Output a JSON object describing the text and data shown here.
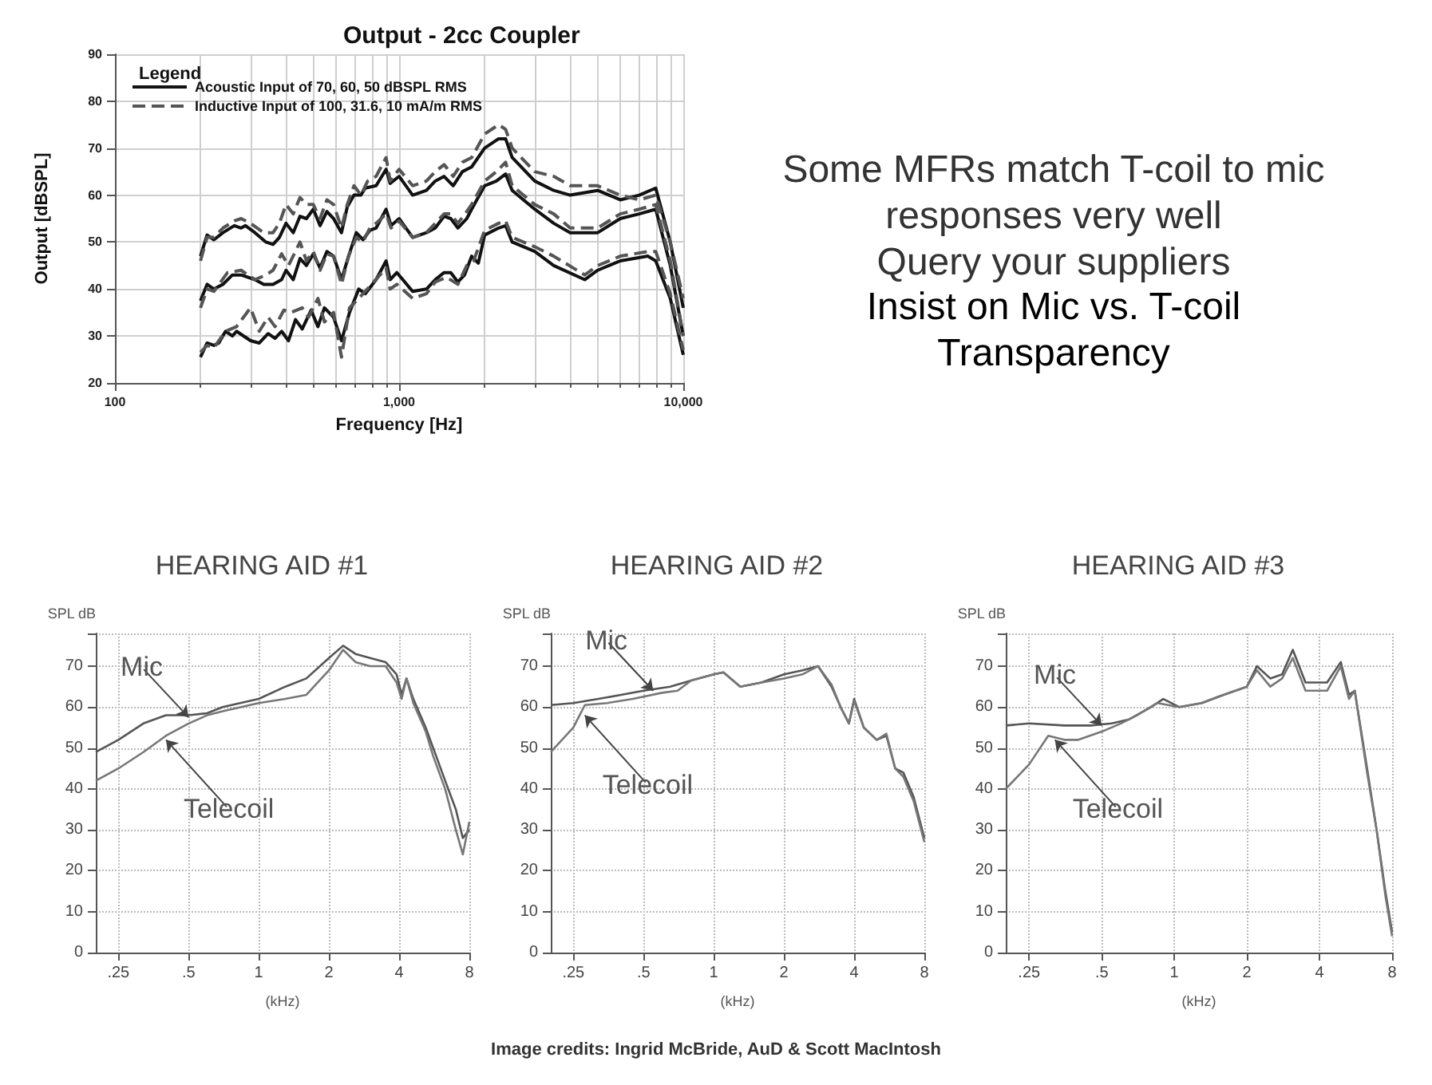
{
  "chart_data": [
    {
      "type": "line",
      "title": "Output - 2cc Coupler",
      "legend_title": "Legend",
      "xlabel": "Frequency [Hz]",
      "ylabel": "Output [dBSPL]",
      "log": "x",
      "xlim": [
        100,
        10000
      ],
      "xticks": [
        100,
        {
          "value": 1000,
          "label": "1,000"
        },
        {
          "value": 10000,
          "label": "10,000"
        }
      ],
      "ylim": [
        20,
        90
      ],
      "yticks": [
        20,
        30,
        40,
        50,
        60,
        70,
        80,
        90
      ],
      "grid": true,
      "legend": "top left",
      "marker": "none",
      "series": [
        {
          "name": "Acoustic Input of 70, 60, 50 dBSPL RMS",
          "color": "#111111",
          "line_style": "solid",
          "x": [
            200,
            211,
            223,
            240,
            263,
            278,
            288,
            311,
            340,
            360,
            379,
            400,
            424,
            448,
            472,
            499,
            527,
            557,
            588,
            627,
            657,
            694,
            734,
            760,
            830,
            900,
            930,
            1000,
            1116,
            1248,
            1340,
            1440,
            1550,
            1670,
            1800,
            2000,
            2240,
            2370,
            2500,
            3000,
            3500,
            4000,
            5000,
            6000,
            7000,
            8000,
            9000,
            10000
          ],
          "values": [
            47,
            51.5,
            50.5,
            52,
            53.5,
            53,
            53.5,
            52,
            50,
            49.5,
            51,
            54,
            52,
            55.5,
            55,
            57,
            53.5,
            56.5,
            55,
            52,
            57.5,
            60,
            60,
            61.5,
            62,
            65.5,
            62.5,
            64,
            60,
            61,
            63,
            64,
            62,
            65,
            66,
            70,
            72,
            72,
            68,
            63,
            61,
            60,
            61,
            59,
            60,
            61.5,
            50,
            36
          ]
        },
        {
          "color": "#111111",
          "line_style": "solid",
          "x": [
            200,
            211,
            223,
            240,
            259,
            278,
            311,
            334,
            360,
            386,
            400,
            424,
            448,
            472,
            499,
            527,
            557,
            588,
            627,
            664,
            707,
            746,
            789,
            830,
            900,
            937,
            1000,
            1116,
            1248,
            1340,
            1440,
            1520,
            1610,
            1730,
            1800,
            2000,
            2200,
            2370,
            2500,
            3000,
            3500,
            4000,
            5000,
            6000,
            7000,
            8000,
            9000,
            10000
          ],
          "values": [
            37.5,
            41,
            40,
            41,
            43,
            43,
            42,
            41,
            41,
            42,
            44,
            42,
            46.5,
            45,
            47.5,
            44.5,
            48,
            47,
            42,
            47,
            52,
            50.5,
            52.5,
            53,
            57,
            53.5,
            55,
            51,
            52,
            53,
            55.5,
            55,
            53,
            55,
            57,
            62,
            63,
            64.5,
            61,
            57,
            54,
            52,
            52,
            55,
            56,
            57,
            45,
            30
          ]
        },
        {
          "color": "#111111",
          "line_style": "solid",
          "x": [
            200,
            211,
            223,
            232,
            245,
            259,
            268,
            300,
            322,
            346,
            366,
            386,
            408,
            432,
            456,
            490,
            518,
            546,
            588,
            627,
            669,
            721,
            760,
            830,
            900,
            930,
            982,
            1116,
            1248,
            1340,
            1440,
            1520,
            1610,
            1700,
            1800,
            1900,
            2000,
            2240,
            2370,
            2500,
            3000,
            3500,
            4500,
            5000,
            6000,
            7500,
            8000,
            9000,
            10000
          ],
          "values": [
            25.5,
            28.5,
            28,
            28.5,
            31,
            30,
            31,
            29,
            28.5,
            30.5,
            29.5,
            31,
            29,
            33.5,
            31.5,
            35.5,
            32,
            36,
            34,
            29,
            35,
            40,
            39,
            42,
            46,
            42,
            43.5,
            39.5,
            40,
            42,
            43.5,
            43.5,
            41.5,
            43,
            47,
            45.5,
            51.5,
            53,
            53.5,
            50,
            48,
            45,
            42,
            44,
            46,
            47,
            46,
            38,
            26
          ]
        },
        {
          "name": "Inductive Input of 100, 31.6, 10 mA/m RMS",
          "color": "#555555",
          "line_style": "dashed",
          "x": [
            200,
            211,
            223,
            240,
            263,
            278,
            300,
            334,
            360,
            379,
            400,
            424,
            448,
            472,
            499,
            527,
            557,
            588,
            627,
            657,
            694,
            734,
            775,
            830,
            900,
            930,
            1000,
            1116,
            1248,
            1340,
            1440,
            1550,
            1670,
            1800,
            2000,
            2240,
            2370,
            2500,
            3000,
            3500,
            4000,
            5000,
            6000,
            7000,
            8000,
            9000,
            10000
          ],
          "values": [
            46,
            51,
            51,
            53,
            54.5,
            55,
            54,
            52,
            52,
            54,
            58,
            56,
            59.5,
            58,
            58,
            55,
            59,
            58,
            53,
            58,
            62,
            60,
            63,
            64,
            68,
            63,
            65.5,
            62,
            63,
            65,
            66.5,
            64,
            67,
            68,
            73,
            75,
            74,
            70,
            65,
            64,
            62,
            62,
            60,
            59,
            60,
            50,
            38
          ]
        },
        {
          "color": "#555555",
          "line_style": "dashed",
          "x": [
            200,
            211,
            223,
            249,
            278,
            311,
            340,
            360,
            386,
            408,
            448,
            472,
            499,
            527,
            557,
            588,
            627,
            664,
            707,
            746,
            789,
            830,
            900,
            937,
            1000,
            1116,
            1248,
            1340,
            1440,
            1520,
            1610,
            1730,
            1800,
            2000,
            2200,
            2370,
            2500,
            3000,
            3500,
            4000,
            5000,
            6000,
            7000,
            8000,
            9000,
            10000
          ],
          "values": [
            36,
            40,
            39.5,
            43.5,
            44,
            42,
            43,
            44,
            47.5,
            45,
            50,
            46,
            48,
            44,
            47.5,
            47,
            41,
            47,
            51,
            50,
            53,
            54,
            56,
            53,
            54.5,
            51,
            52,
            54,
            56,
            56,
            54,
            56.5,
            58,
            63,
            65,
            67,
            62,
            58,
            56,
            53,
            53,
            56,
            57,
            58,
            46,
            30
          ]
        },
        {
          "color": "#555555",
          "line_style": "dashed",
          "x": [
            200,
            211,
            223,
            245,
            268,
            300,
            322,
            346,
            366,
            393,
            416,
            456,
            480,
            518,
            546,
            588,
            627,
            669,
            721,
            800,
            900,
            930,
            982,
            1116,
            1248,
            1340,
            1470,
            1610,
            1730,
            1830,
            2000,
            2240,
            2370,
            2500,
            3000,
            3500,
            4500,
            5000,
            6000,
            7500,
            8000,
            9000,
            10000
          ],
          "values": [
            26.5,
            28,
            27.5,
            31,
            32,
            36,
            31,
            34,
            32,
            35.5,
            35,
            36,
            34,
            38,
            33,
            35,
            25.5,
            36,
            38,
            41,
            44.5,
            40,
            41,
            38,
            39,
            41.5,
            42.5,
            41,
            45,
            46,
            52.5,
            54,
            54.5,
            51,
            49,
            47,
            43,
            45,
            47,
            48,
            48,
            39,
            27
          ]
        }
      ]
    },
    {
      "type": "other",
      "annotations": [
        "Some MFRs match T-coil to mic responses very well",
        "Query your suppliers",
        "Insist on Mic vs. T-coil Transparency"
      ]
    },
    {
      "type": "line",
      "title": "HEARING AID #1",
      "xlabel": "(kHz)",
      "ylabel": "SPL dB",
      "log": "x",
      "xlim": [
        0.2,
        8
      ],
      "xticks": [
        {
          "value": 0.25,
          "label": ".25"
        },
        {
          "value": 0.5,
          "label": ".5"
        },
        1,
        2,
        4,
        8
      ],
      "ylim": [
        0,
        78
      ],
      "yticks": [
        0,
        10,
        20,
        30,
        40,
        50,
        60,
        70
      ],
      "grid": true,
      "marker": "none",
      "annotations": [
        {
          "text": "Mic",
          "x": 0.5,
          "y": 57.5
        },
        {
          "text": "Telecoil",
          "x": 0.4,
          "y": 52
        }
      ],
      "series": [
        {
          "color": "#555555",
          "x": [
            0.2,
            0.25,
            0.32,
            0.4,
            0.5,
            0.6,
            0.7,
            1,
            1.3,
            1.6,
            2,
            2.3,
            2.6,
            3,
            3.5,
            3.9,
            4.1,
            4.3,
            4.6,
            5.2,
            5.6,
            6.3,
            7,
            7.5,
            8
          ],
          "values": [
            49,
            52,
            56,
            58,
            58,
            58.5,
            60,
            62,
            65,
            67,
            72,
            75,
            73,
            72,
            71,
            68,
            63,
            67,
            62,
            55,
            50,
            42,
            35,
            28,
            30
          ]
        },
        {
          "color": "#777777",
          "x": [
            0.2,
            0.25,
            0.32,
            0.4,
            0.5,
            0.6,
            0.7,
            1,
            1.3,
            1.6,
            2,
            2.3,
            2.6,
            3,
            3.5,
            3.9,
            4.1,
            4.3,
            4.6,
            5.2,
            5.6,
            6.3,
            7,
            7.5,
            8
          ],
          "values": [
            42,
            45,
            49,
            53,
            56,
            58,
            59,
            61,
            62,
            63,
            69,
            74,
            71,
            70,
            70,
            66,
            62,
            67,
            61,
            54,
            48,
            40,
            30,
            24,
            32
          ]
        }
      ]
    },
    {
      "type": "line",
      "title": "HEARING AID #2",
      "xlabel": "(kHz)",
      "ylabel": "SPL dB",
      "log": "x",
      "xlim": [
        0.2,
        8
      ],
      "xticks": [
        {
          "value": 0.25,
          "label": ".25"
        },
        {
          "value": 0.5,
          "label": ".5"
        },
        1,
        2,
        4,
        8
      ],
      "ylim": [
        0,
        78
      ],
      "yticks": [
        0,
        10,
        20,
        30,
        40,
        50,
        60,
        70
      ],
      "grid": true,
      "marker": "none",
      "annotations": [
        {
          "text": "Mic",
          "x": 0.55,
          "y": 64
        },
        {
          "text": "Telecoil",
          "x": 0.28,
          "y": 58
        }
      ],
      "series": [
        {
          "color": "#555555",
          "x": [
            0.2,
            0.25,
            0.32,
            0.4,
            0.5,
            0.65,
            0.8,
            1,
            1.1,
            1.3,
            1.6,
            2,
            2.4,
            2.8,
            3.2,
            3.5,
            3.8,
            4,
            4.4,
            5,
            5.5,
            6,
            6.5,
            7.2,
            8
          ],
          "values": [
            60.5,
            61,
            62,
            63,
            64,
            65,
            66.5,
            68,
            68.5,
            65,
            66,
            68,
            69,
            70,
            65,
            60,
            56,
            62,
            55,
            52,
            53,
            45,
            44,
            38,
            28
          ]
        },
        {
          "color": "#777777",
          "x": [
            0.2,
            0.25,
            0.28,
            0.35,
            0.45,
            0.6,
            0.7,
            0.8,
            1,
            1.1,
            1.3,
            1.6,
            2,
            2.4,
            2.8,
            3.2,
            3.5,
            3.8,
            4,
            4.4,
            5,
            5.5,
            6,
            6.5,
            7.2,
            8
          ],
          "values": [
            49,
            55,
            60.5,
            61,
            62,
            63.5,
            64,
            66.5,
            68,
            68.5,
            65,
            66,
            67,
            68,
            70,
            65.5,
            60,
            56,
            61.5,
            55,
            52,
            53.5,
            45,
            43,
            37,
            27
          ]
        }
      ]
    },
    {
      "type": "line",
      "title": "HEARING AID #3",
      "xlabel": "(kHz)",
      "ylabel": "SPL dB",
      "log": "x",
      "xlim": [
        0.2,
        8
      ],
      "xticks": [
        {
          "value": 0.25,
          "label": ".25"
        },
        {
          "value": 0.5,
          "label": ".5"
        },
        1,
        2,
        4,
        8
      ],
      "ylim": [
        0,
        78
      ],
      "yticks": [
        0,
        10,
        20,
        30,
        40,
        50,
        60,
        70
      ],
      "grid": true,
      "marker": "none",
      "annotations": [
        {
          "text": "Mic",
          "x": 0.5,
          "y": 55.5
        },
        {
          "text": "Telecoil",
          "x": 0.32,
          "y": 52
        }
      ],
      "series": [
        {
          "color": "#555555",
          "x": [
            0.2,
            0.25,
            0.35,
            0.45,
            0.55,
            0.65,
            0.8,
            0.9,
            1.05,
            1.3,
            1.6,
            2,
            2.2,
            2.5,
            2.8,
            3.1,
            3.5,
            4.3,
            4.9,
            5.3,
            5.6,
            6.3,
            6.9,
            7.5,
            8
          ],
          "values": [
            55.5,
            56,
            55.5,
            55.5,
            56,
            57,
            60,
            62,
            60,
            61,
            63,
            65,
            70,
            67,
            68,
            74,
            66,
            66,
            71,
            63,
            64,
            45,
            30,
            15,
            5
          ]
        },
        {
          "color": "#777777",
          "x": [
            0.2,
            0.25,
            0.3,
            0.35,
            0.4,
            0.5,
            0.6,
            0.7,
            0.85,
            1.05,
            1.3,
            1.6,
            2,
            2.2,
            2.5,
            2.8,
            3.1,
            3.5,
            4.3,
            4.9,
            5.3,
            5.6,
            6.3,
            6.9,
            7.5,
            8
          ],
          "values": [
            40,
            46,
            53,
            52,
            52,
            54,
            56,
            58,
            61,
            60,
            61,
            63,
            65,
            69,
            65,
            67,
            72,
            64,
            64,
            70,
            62,
            64,
            44,
            30,
            14,
            4
          ]
        }
      ]
    },
    {
      "type": "other",
      "annotations": [
        "Image credits: Ingrid McBride, AuD &  Scott MacIntosh"
      ]
    }
  ]
}
